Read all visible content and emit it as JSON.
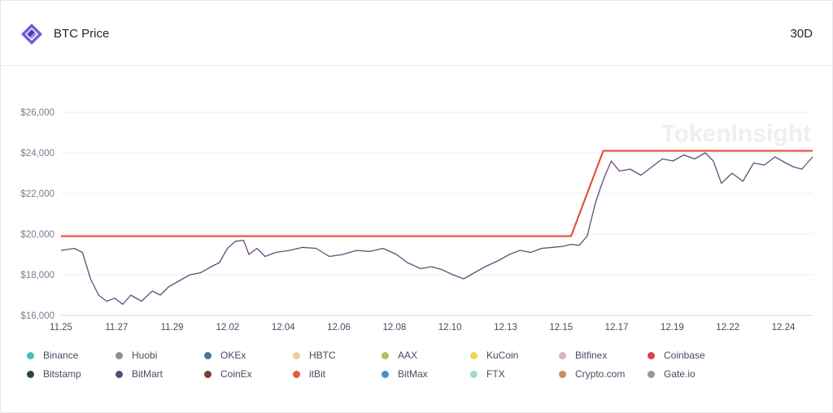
{
  "header": {
    "title": "BTC Price",
    "range": "30D",
    "watermark": "TokenInsight"
  },
  "chart_data": {
    "type": "line",
    "title": "BTC Price",
    "xlabel": "",
    "ylabel": "",
    "ylim": [
      16000,
      26000
    ],
    "y_ticks": [
      "$16,000",
      "$18,000",
      "$20,000",
      "$22,000",
      "$24,000",
      "$26,000"
    ],
    "y_tick_values": [
      16000,
      18000,
      20000,
      22000,
      24000,
      26000
    ],
    "x_ticks": [
      "11.25",
      "11.27",
      "11.29",
      "12.02",
      "12.04",
      "12.06",
      "12.08",
      "12.10",
      "12.13",
      "12.15",
      "12.17",
      "12.19",
      "12.22",
      "12.24"
    ],
    "x_range": [
      0,
      28
    ],
    "grid": "horizontal",
    "legend_placement": "bottom",
    "series": [
      {
        "name": "itBit",
        "color": "#e0482d",
        "points": [
          [
            0,
            19900
          ],
          [
            19,
            19900
          ],
          [
            20.2,
            24100
          ],
          [
            28,
            24100
          ]
        ]
      },
      {
        "name": "Coinbase",
        "color": "#6b4a78",
        "points": [
          [
            0,
            19200
          ],
          [
            0.5,
            19300
          ],
          [
            0.8,
            19100
          ],
          [
            1.1,
            17800
          ],
          [
            1.4,
            17000
          ],
          [
            1.7,
            16700
          ],
          [
            2.0,
            16850
          ],
          [
            2.3,
            16550
          ],
          [
            2.6,
            17000
          ],
          [
            3.0,
            16700
          ],
          [
            3.4,
            17200
          ],
          [
            3.7,
            17000
          ],
          [
            4.0,
            17400
          ],
          [
            4.4,
            17700
          ],
          [
            4.8,
            18000
          ],
          [
            5.2,
            18100
          ],
          [
            5.6,
            18400
          ],
          [
            5.9,
            18600
          ],
          [
            6.2,
            19300
          ],
          [
            6.5,
            19650
          ],
          [
            6.8,
            19700
          ],
          [
            7.0,
            19000
          ],
          [
            7.3,
            19300
          ],
          [
            7.6,
            18900
          ],
          [
            8.0,
            19100
          ],
          [
            8.5,
            19200
          ],
          [
            9.0,
            19350
          ],
          [
            9.5,
            19300
          ],
          [
            10.0,
            18900
          ],
          [
            10.5,
            19000
          ],
          [
            11.0,
            19200
          ],
          [
            11.5,
            19150
          ],
          [
            12.0,
            19300
          ],
          [
            12.5,
            19000
          ],
          [
            12.9,
            18600
          ],
          [
            13.4,
            18300
          ],
          [
            13.8,
            18400
          ],
          [
            14.2,
            18250
          ],
          [
            14.6,
            18000
          ],
          [
            15.0,
            17800
          ],
          [
            15.4,
            18100
          ],
          [
            15.8,
            18400
          ],
          [
            16.3,
            18700
          ],
          [
            16.7,
            19000
          ],
          [
            17.1,
            19200
          ],
          [
            17.5,
            19100
          ],
          [
            17.9,
            19300
          ],
          [
            18.3,
            19350
          ],
          [
            18.7,
            19400
          ],
          [
            19.0,
            19500
          ],
          [
            19.3,
            19450
          ],
          [
            19.6,
            19900
          ],
          [
            19.9,
            21500
          ],
          [
            20.1,
            22300
          ],
          [
            20.3,
            23000
          ],
          [
            20.5,
            23600
          ],
          [
            20.8,
            23100
          ],
          [
            21.2,
            23200
          ],
          [
            21.6,
            22900
          ],
          [
            22.0,
            23300
          ],
          [
            22.4,
            23700
          ],
          [
            22.8,
            23600
          ],
          [
            23.2,
            23900
          ],
          [
            23.6,
            23700
          ],
          [
            24.0,
            24000
          ],
          [
            24.3,
            23600
          ],
          [
            24.6,
            22500
          ],
          [
            25.0,
            23000
          ],
          [
            25.4,
            22600
          ],
          [
            25.8,
            23500
          ],
          [
            26.2,
            23400
          ],
          [
            26.6,
            23800
          ],
          [
            27.0,
            23500
          ],
          [
            27.3,
            23300
          ],
          [
            27.6,
            23200
          ],
          [
            28.0,
            23800
          ]
        ]
      }
    ],
    "legend": [
      {
        "name": "Binance",
        "color": "#4bbfb5"
      },
      {
        "name": "Huobi",
        "color": "#8f8f8f"
      },
      {
        "name": "OKEx",
        "color": "#51748f"
      },
      {
        "name": "HBTC",
        "color": "#ebcd9f"
      },
      {
        "name": "AAX",
        "color": "#a9c267"
      },
      {
        "name": "KuCoin",
        "color": "#f0d657"
      },
      {
        "name": "Bitfinex",
        "color": "#d6b5b9"
      },
      {
        "name": "Coinbase",
        "color": "#d9424b"
      },
      {
        "name": "Bitstamp",
        "color": "#28484c"
      },
      {
        "name": "BitMart",
        "color": "#56497c"
      },
      {
        "name": "CoinEx",
        "color": "#7a4034"
      },
      {
        "name": "itBit",
        "color": "#e55a3d"
      },
      {
        "name": "BitMax",
        "color": "#4f8fc3"
      },
      {
        "name": "FTX",
        "color": "#9fdcc4"
      },
      {
        "name": "Crypto.com",
        "color": "#d58a4f"
      },
      {
        "name": "Gate.io",
        "color": "#8c9c97"
      }
    ]
  }
}
